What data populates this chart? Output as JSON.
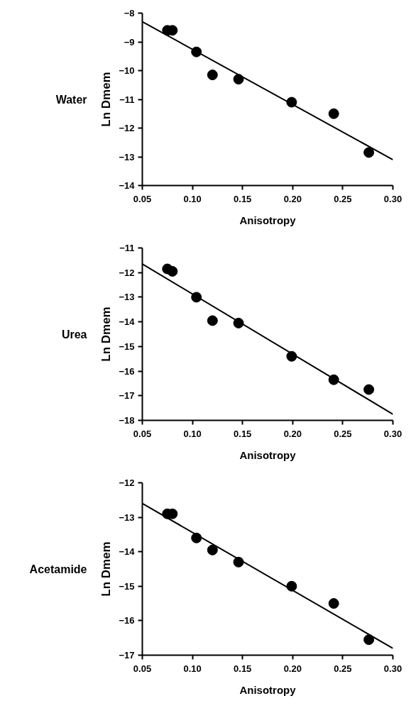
{
  "chart_data": [
    {
      "type": "scatter",
      "title": "Water",
      "xlabel": "Anisotropy",
      "ylabel": "Ln Dmem",
      "xlim": [
        0.05,
        0.3
      ],
      "xticks": [
        {
          "value": 0.05,
          "label": "0.05"
        },
        {
          "value": 0.1,
          "label": "0.10"
        },
        {
          "value": 0.15,
          "label": "0.15"
        },
        {
          "value": 0.2,
          "label": "0.20"
        },
        {
          "value": 0.25,
          "label": "0.25"
        },
        {
          "value": 0.3,
          "label": "0.30"
        }
      ],
      "ylim": [
        -14,
        -8
      ],
      "yticks": [
        -14,
        -13,
        -12,
        -11,
        -10,
        -9,
        -8
      ],
      "grid": false,
      "marker": "circle",
      "series": [
        {
          "color": "#000000",
          "x": [
            0.075,
            0.08,
            0.104,
            0.12,
            0.146,
            0.199,
            0.241,
            0.276
          ],
          "values": [
            -8.6,
            -8.6,
            -9.35,
            -10.15,
            -10.3,
            -11.1,
            -11.5,
            -12.85
          ]
        },
        {
          "type": "line",
          "marker": "none",
          "color": "#000000",
          "x": [
            0.05,
            0.3
          ],
          "values": [
            -8.3,
            -13.1
          ]
        }
      ]
    },
    {
      "type": "scatter",
      "title": "Urea",
      "xlabel": "Anisotropy",
      "ylabel": "Ln Dmem",
      "xlim": [
        0.05,
        0.3
      ],
      "xticks": [
        {
          "value": 0.05,
          "label": "0.05"
        },
        {
          "value": 0.1,
          "label": "0.10"
        },
        {
          "value": 0.15,
          "label": "0.15"
        },
        {
          "value": 0.2,
          "label": "0.20"
        },
        {
          "value": 0.25,
          "label": "0.25"
        },
        {
          "value": 0.3,
          "label": "0.30"
        }
      ],
      "ylim": [
        -18,
        -11
      ],
      "yticks": [
        -18,
        -17,
        -16,
        -15,
        -14,
        -13,
        -12,
        -11
      ],
      "grid": false,
      "marker": "circle",
      "series": [
        {
          "color": "#000000",
          "x": [
            0.075,
            0.08,
            0.104,
            0.12,
            0.146,
            0.199,
            0.241,
            0.276
          ],
          "values": [
            -11.85,
            -11.95,
            -13.0,
            -13.95,
            -14.05,
            -15.4,
            -16.35,
            -16.75
          ]
        },
        {
          "type": "line",
          "marker": "none",
          "color": "#000000",
          "x": [
            0.05,
            0.3
          ],
          "values": [
            -11.65,
            -17.75
          ]
        }
      ]
    },
    {
      "type": "scatter",
      "title": "Acetamide",
      "xlabel": "Anisotropy",
      "ylabel": "Ln Dmem",
      "xlim": [
        0.05,
        0.3
      ],
      "xticks": [
        {
          "value": 0.05,
          "label": "0.05"
        },
        {
          "value": 0.1,
          "label": "0.10"
        },
        {
          "value": 0.15,
          "label": "0.15"
        },
        {
          "value": 0.2,
          "label": "0.20"
        },
        {
          "value": 0.25,
          "label": "0.25"
        },
        {
          "value": 0.3,
          "label": "0.30"
        }
      ],
      "ylim": [
        -17,
        -12
      ],
      "yticks": [
        -17,
        -16,
        -15,
        -14,
        -13,
        -12
      ],
      "grid": false,
      "marker": "circle",
      "series": [
        {
          "color": "#000000",
          "x": [
            0.075,
            0.08,
            0.104,
            0.12,
            0.146,
            0.199,
            0.241,
            0.276
          ],
          "values": [
            -12.9,
            -12.9,
            -13.6,
            -13.95,
            -14.3,
            -15.0,
            -15.5,
            -16.55
          ]
        },
        {
          "type": "line",
          "marker": "none",
          "color": "#000000",
          "x": [
            0.05,
            0.3
          ],
          "values": [
            -12.6,
            -16.8
          ]
        }
      ]
    }
  ]
}
